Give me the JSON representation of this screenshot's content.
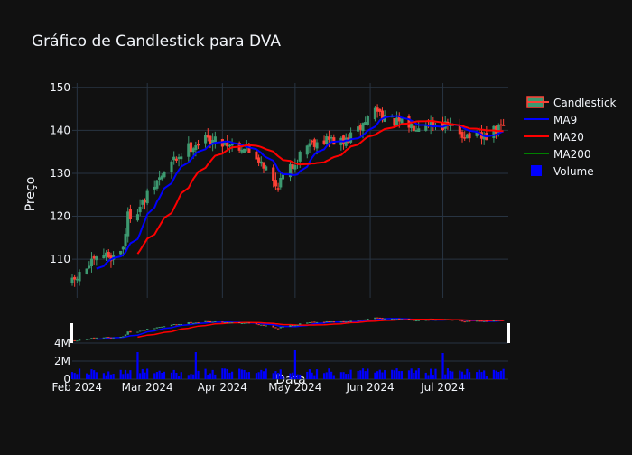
{
  "title": "Gráfico de Candlestick para DVA",
  "chart_data": {
    "type": "candlestick",
    "title": "Gráfico de Candlestick para DVA",
    "xlabel": "Data",
    "ylabel": "Preço",
    "x_range": [
      "2024-01-30",
      "2024-07-28"
    ],
    "y_range": [
      101,
      151
    ],
    "y_ticks": [
      110,
      120,
      130,
      140,
      150
    ],
    "x_ticks": [
      {
        "date": "2024-02-01",
        "label": "Feb 2024"
      },
      {
        "date": "2024-03-01",
        "label": "Mar 2024"
      },
      {
        "date": "2024-04-01",
        "label": "Apr 2024"
      },
      {
        "date": "2024-05-01",
        "label": "May 2024"
      },
      {
        "date": "2024-06-01",
        "label": "Jun 2024"
      },
      {
        "date": "2024-07-01",
        "label": "Jul 2024"
      }
    ],
    "volume_ticks": [
      {
        "value": 0,
        "label": "0"
      },
      {
        "value": 2000000,
        "label": "2M"
      },
      {
        "value": 4000000,
        "label": "4M"
      }
    ],
    "volume_range": [
      0,
      6000000
    ],
    "grid": true,
    "legend_position": "top-right",
    "legend": [
      {
        "name": "Candlestick",
        "symbol": "candle"
      },
      {
        "name": "MA9",
        "symbol": "line",
        "color": "#0000ff"
      },
      {
        "name": "MA20",
        "symbol": "line",
        "color": "#ff0000"
      },
      {
        "name": "MA200",
        "symbol": "line",
        "color": "#008000"
      },
      {
        "name": "Volume",
        "symbol": "square",
        "color": "#0000ff"
      }
    ],
    "colors": {
      "up": "#3d9970",
      "down": "#ff4136",
      "ma9": "#0000ff",
      "ma20": "#ff0000",
      "ma200": "#008000",
      "volume": "#0000ff",
      "grid": "#283442",
      "background": "#111111"
    },
    "anchors": [
      {
        "date": "2024-01-30",
        "close": 104.5
      },
      {
        "date": "2024-02-05",
        "close": 108.0
      },
      {
        "date": "2024-02-12",
        "close": 111.0
      },
      {
        "date": "2024-02-16",
        "close": 110.5
      },
      {
        "date": "2024-02-20",
        "close": 113.0
      },
      {
        "date": "2024-02-22",
        "close": 120.0
      },
      {
        "date": "2024-02-27",
        "close": 122.0
      },
      {
        "date": "2024-03-05",
        "close": 128.0
      },
      {
        "date": "2024-03-12",
        "close": 133.0
      },
      {
        "date": "2024-03-18",
        "close": 136.0
      },
      {
        "date": "2024-03-25",
        "close": 138.0
      },
      {
        "date": "2024-04-03",
        "close": 137.0
      },
      {
        "date": "2024-04-10",
        "close": 136.0
      },
      {
        "date": "2024-04-17",
        "close": 133.0
      },
      {
        "date": "2024-04-23",
        "close": 127.0
      },
      {
        "date": "2024-04-29",
        "close": 131.0
      },
      {
        "date": "2024-05-06",
        "close": 137.0
      },
      {
        "date": "2024-05-14",
        "close": 138.0
      },
      {
        "date": "2024-05-21",
        "close": 137.0
      },
      {
        "date": "2024-05-27",
        "close": 140.0
      },
      {
        "date": "2024-06-03",
        "close": 145.0
      },
      {
        "date": "2024-06-10",
        "close": 142.0
      },
      {
        "date": "2024-06-18",
        "close": 141.0
      },
      {
        "date": "2024-06-25",
        "close": 142.0
      },
      {
        "date": "2024-07-03",
        "close": 141.0
      },
      {
        "date": "2024-07-10",
        "close": 139.0
      },
      {
        "date": "2024-07-17",
        "close": 138.0
      },
      {
        "date": "2024-07-26",
        "close": 141.0
      }
    ],
    "volume_base": 1000000,
    "volume_spikes": [
      {
        "date": "2024-02-26",
        "value": 3000000
      },
      {
        "date": "2024-03-21",
        "value": 3000000
      },
      {
        "date": "2024-05-01",
        "value": 3200000
      },
      {
        "date": "2024-07-01",
        "value": 2900000
      }
    ]
  }
}
